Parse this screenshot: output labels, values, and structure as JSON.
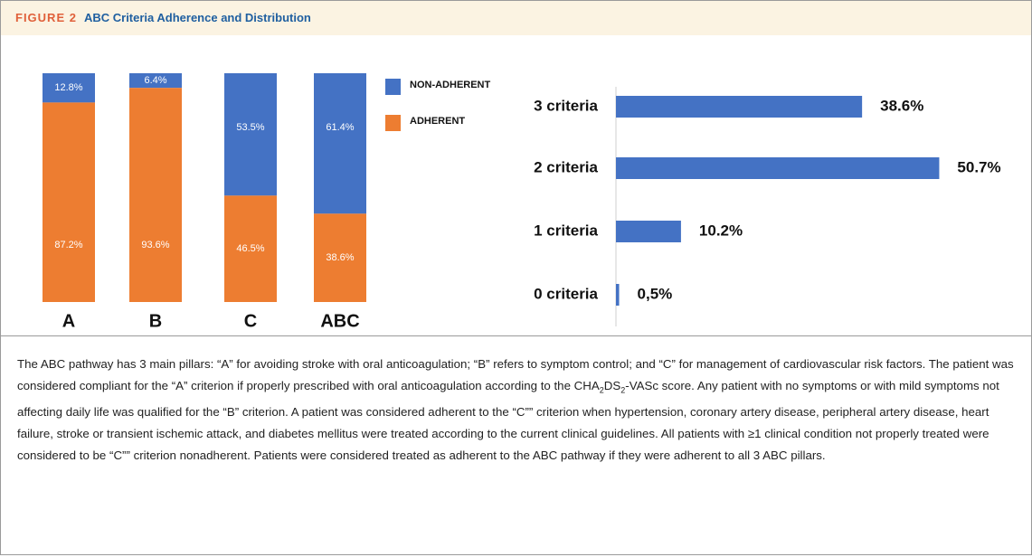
{
  "figure": {
    "label": "FIGURE 2",
    "title": "ABC Criteria Adherence and Distribution"
  },
  "chart_data": [
    {
      "type": "stacked-bar",
      "categories": [
        "A",
        "B",
        "C",
        "ABC"
      ],
      "series": [
        {
          "name": "NON-ADHERENT",
          "color": "#4472c4",
          "values": [
            12.8,
            6.4,
            53.5,
            61.4
          ],
          "value_labels": [
            "12.8%",
            "6.4%",
            "53.5%",
            "61.4%"
          ]
        },
        {
          "name": "ADHERENT",
          "color": "#ed7d31",
          "values": [
            87.2,
            93.6,
            46.5,
            38.6
          ],
          "value_labels": [
            "87.2%",
            "93.6%",
            "46.5%",
            "38.6%"
          ]
        }
      ]
    },
    {
      "type": "hbar",
      "categories": [
        "3 criteria",
        "2 criteria",
        "1 criteria",
        "0 criteria"
      ],
      "values": [
        38.6,
        50.7,
        10.2,
        0.5
      ],
      "value_labels": [
        "38.6%",
        "50.7%",
        "10.2%",
        "0,5%"
      ],
      "color": "#4472c4"
    }
  ],
  "caption": [
    "The ABC pathway has 3 main pillars: “A” for avoiding stroke with oral anticoagulation; “B” refers to symptom control; and “C” for management of cardiovascular risk factors. The patient was considered compliant for the “A” criterion if properly prescribed with oral anticoagulation according to the CHA",
    "2",
    "DS",
    "2",
    "-VASc score. Any patient with no symptoms or with mild symptoms not affecting daily life was qualified for the “B” criterion. A patient was considered adherent to the “C”” criterion when hypertension, coronary artery disease, peripheral artery disease, heart failure, stroke or transient ischemic attack, and diabetes mellitus were treated according to the current clinical guidelines. All patients with ≥1 clinical condition not properly treated were considered to be “C”” criterion nonadherent. Patients were considered treated as adherent to the ABC pathway if they were adherent to all 3 ABC pillars."
  ]
}
